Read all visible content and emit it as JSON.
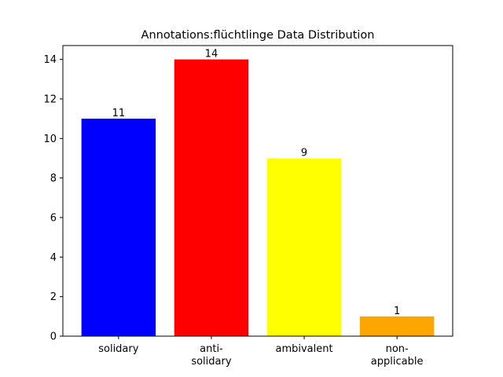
{
  "chart_data": {
    "type": "bar",
    "title": "Annotations:flüchtlinge Data Distribution",
    "xlabel": "",
    "ylabel": "",
    "categories": [
      "solidary",
      "anti-\nsolidary",
      "ambivalent",
      "non-\napplicable"
    ],
    "values": [
      11,
      14,
      9,
      1
    ],
    "colors": [
      "#0000ff",
      "#ff0000",
      "#ffff00",
      "#ffa500"
    ],
    "ylim": [
      0,
      14.7
    ],
    "yticks": [
      0,
      2,
      4,
      6,
      8,
      10,
      12,
      14
    ],
    "grid": false,
    "legend": "none",
    "data_labels": true
  }
}
